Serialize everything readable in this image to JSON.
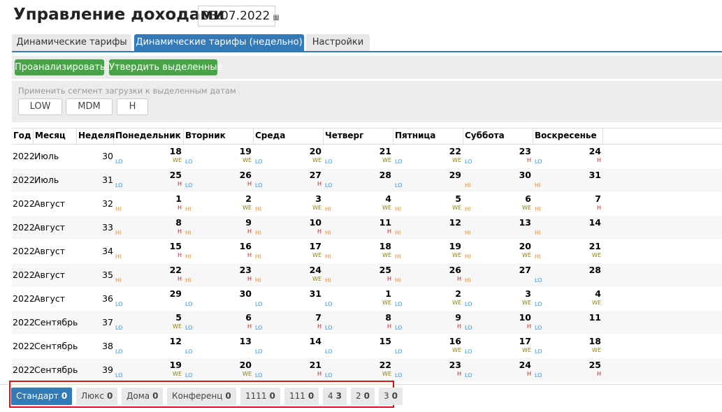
{
  "header": {
    "title": "Управление доходами",
    "date": "03.07.2022"
  },
  "tabs": [
    {
      "label": "Динамические тарифы"
    },
    {
      "label": "Динамические тарифы (недельно)",
      "active": true
    },
    {
      "label": "Настройки"
    }
  ],
  "actions": [
    "Проанализировать",
    "Утвердить выделенные"
  ],
  "segment_panel": {
    "label": "Применить сегмент загрузки к выделенным датам",
    "buttons": [
      "LOW",
      "MDM",
      "H"
    ]
  },
  "table": {
    "columns": [
      "Год",
      "Месяц",
      "Неделя",
      "Понедельник",
      "Вторник",
      "Среда",
      "Четверг",
      "Пятница",
      "Суббота",
      "Воскресенье"
    ],
    "rows": [
      {
        "year": 2022,
        "month": "Июль",
        "week": 30,
        "days": [
          {
            "seg": "LO",
            "day": 18,
            "flag": "WE"
          },
          {
            "seg": "LO",
            "day": 19,
            "flag": "WE"
          },
          {
            "seg": "LO",
            "day": 20,
            "flag": "WE"
          },
          {
            "seg": "LO",
            "day": 21,
            "flag": "WE"
          },
          {
            "seg": "LO",
            "day": 22,
            "flag": "WE"
          },
          {
            "seg": "LO",
            "day": 23,
            "flag": "H"
          },
          {
            "seg": "LO",
            "day": 24,
            "flag": "H"
          }
        ]
      },
      {
        "year": 2022,
        "month": "Июль",
        "week": 31,
        "days": [
          {
            "seg": "LO",
            "day": 25,
            "flag": "H"
          },
          {
            "seg": "LO",
            "day": 26,
            "flag": "H"
          },
          {
            "seg": "LO",
            "day": 27,
            "flag": "H"
          },
          {
            "seg": "LO",
            "day": 28
          },
          {
            "seg": "LO",
            "day": 29
          },
          {
            "seg": "HI",
            "day": 30
          },
          {
            "seg": "HI",
            "day": 31
          }
        ]
      },
      {
        "year": 2022,
        "month": "Август",
        "week": 32,
        "days": [
          {
            "seg": "HI",
            "day": 1,
            "flag": "H"
          },
          {
            "seg": "HI",
            "day": 2,
            "flag": "WE"
          },
          {
            "seg": "HI",
            "day": 3,
            "flag": "WE"
          },
          {
            "seg": "HI",
            "day": 4,
            "flag": "WE"
          },
          {
            "seg": "HI",
            "day": 5,
            "flag": "WE"
          },
          {
            "seg": "HI",
            "day": 6,
            "flag": "WE"
          },
          {
            "seg": "HI",
            "day": 7,
            "flag": "H"
          }
        ]
      },
      {
        "year": 2022,
        "month": "Август",
        "week": 33,
        "days": [
          {
            "seg": "HI",
            "day": 8,
            "flag": "H"
          },
          {
            "seg": "HI",
            "day": 9,
            "flag": "H"
          },
          {
            "seg": "HI",
            "day": 10,
            "flag": "H"
          },
          {
            "seg": "HI",
            "day": 11,
            "flag": "H"
          },
          {
            "seg": "HI",
            "day": 12
          },
          {
            "seg": "HI",
            "day": 13
          },
          {
            "seg": "HI",
            "day": 14
          }
        ]
      },
      {
        "year": 2022,
        "month": "Август",
        "week": 34,
        "days": [
          {
            "seg": "HI",
            "day": 15,
            "flag": "H"
          },
          {
            "seg": "HI",
            "day": 16,
            "flag": "H"
          },
          {
            "seg": "HI",
            "day": 17,
            "flag": "WE"
          },
          {
            "seg": "HI",
            "day": 18,
            "flag": "WE"
          },
          {
            "seg": "HI",
            "day": 19,
            "flag": "WE"
          },
          {
            "seg": "HI",
            "day": 20,
            "flag": "WE"
          },
          {
            "seg": "HI",
            "day": 21,
            "flag": "WE"
          }
        ]
      },
      {
        "year": 2022,
        "month": "Август",
        "week": 35,
        "days": [
          {
            "seg": "HI",
            "day": 22,
            "flag": "H"
          },
          {
            "seg": "HI",
            "day": 23,
            "flag": "H"
          },
          {
            "seg": "HI",
            "day": 24,
            "flag": "WE"
          },
          {
            "seg": "HI",
            "day": 25,
            "flag": "H"
          },
          {
            "seg": "HI",
            "day": 26,
            "flag": "H"
          },
          {
            "seg": "HI",
            "day": 27
          },
          {
            "seg": "LO",
            "day": 28
          }
        ]
      },
      {
        "year": 2022,
        "month": "Август",
        "week": 36,
        "days": [
          {
            "seg": "LO",
            "day": 29
          },
          {
            "seg": "LO",
            "day": 30
          },
          {
            "seg": "LO",
            "day": 31
          },
          {
            "seg": "LO",
            "day": 1,
            "flag": "WE"
          },
          {
            "seg": "LO",
            "day": 2,
            "flag": "WE"
          },
          {
            "seg": "LO",
            "day": 3,
            "flag": "WE"
          },
          {
            "seg": "LO",
            "day": 4,
            "flag": "WE"
          }
        ]
      },
      {
        "year": 2022,
        "month": "Сентябрь",
        "week": 37,
        "days": [
          {
            "seg": "LO",
            "day": 5,
            "flag": "WE"
          },
          {
            "seg": "LO",
            "day": 6,
            "flag": "H"
          },
          {
            "seg": "LO",
            "day": 7,
            "flag": "H"
          },
          {
            "seg": "LO",
            "day": 8,
            "flag": "H"
          },
          {
            "seg": "LO",
            "day": 9,
            "flag": "H"
          },
          {
            "seg": "LO",
            "day": 10,
            "flag": "H"
          },
          {
            "seg": "LO",
            "day": 11
          }
        ]
      },
      {
        "year": 2022,
        "month": "Сентябрь",
        "week": 38,
        "days": [
          {
            "seg": "LO",
            "day": 12
          },
          {
            "seg": "LO",
            "day": 13
          },
          {
            "seg": "LO",
            "day": 14
          },
          {
            "seg": "LO",
            "day": 15
          },
          {
            "seg": "LO",
            "day": 16,
            "flag": "WE"
          },
          {
            "seg": "LO",
            "day": 17,
            "flag": "WE"
          },
          {
            "seg": "LO",
            "day": 18,
            "flag": "WE"
          }
        ]
      },
      {
        "year": 2022,
        "month": "Сентябрь",
        "week": 39,
        "days": [
          {
            "seg": "LO",
            "day": 19,
            "flag": "WE"
          },
          {
            "seg": "LO",
            "day": 20,
            "flag": "WE"
          },
          {
            "seg": "LO",
            "day": 21,
            "flag": "H"
          },
          {
            "seg": "LO",
            "day": 22,
            "flag": "WE"
          },
          {
            "seg": "LO",
            "day": 23,
            "flag": "H"
          },
          {
            "seg": "LO",
            "day": 24,
            "flag": "H"
          },
          {
            "seg": "LO",
            "day": 25,
            "flag": "H"
          }
        ]
      }
    ]
  },
  "room_tabs": [
    {
      "name": "Стандарт",
      "count": 0,
      "active": true
    },
    {
      "name": "Люкс",
      "count": 0
    },
    {
      "name": "Дома",
      "count": 0
    },
    {
      "name": "Конференц",
      "count": 0
    },
    {
      "name": "1111",
      "count": 0
    },
    {
      "name": "111",
      "count": 0
    },
    {
      "name": "4",
      "count": 3
    },
    {
      "name": "2",
      "count": 0
    },
    {
      "name": "3",
      "count": 0
    }
  ]
}
